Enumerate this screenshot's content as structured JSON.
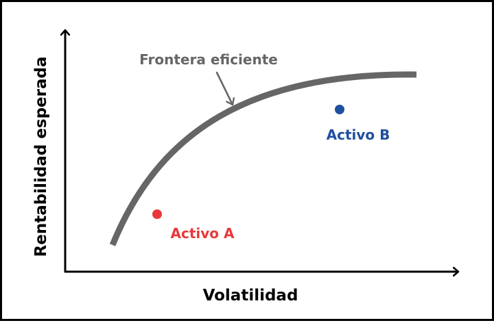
{
  "chart_data": {
    "type": "line",
    "xlabel": "Volatilidad",
    "ylabel": "Rentabilidad esperada",
    "grid": false,
    "legend": "none",
    "curve": {
      "label": "Frontera eficiente",
      "color": "#666666"
    },
    "points": [
      {
        "label": "Activo A",
        "color": "#e8393a"
      },
      {
        "label": "Activo B",
        "color": "#1f4fa0"
      }
    ],
    "colors": {
      "axis": "#000000",
      "annotation": "#666666"
    }
  }
}
